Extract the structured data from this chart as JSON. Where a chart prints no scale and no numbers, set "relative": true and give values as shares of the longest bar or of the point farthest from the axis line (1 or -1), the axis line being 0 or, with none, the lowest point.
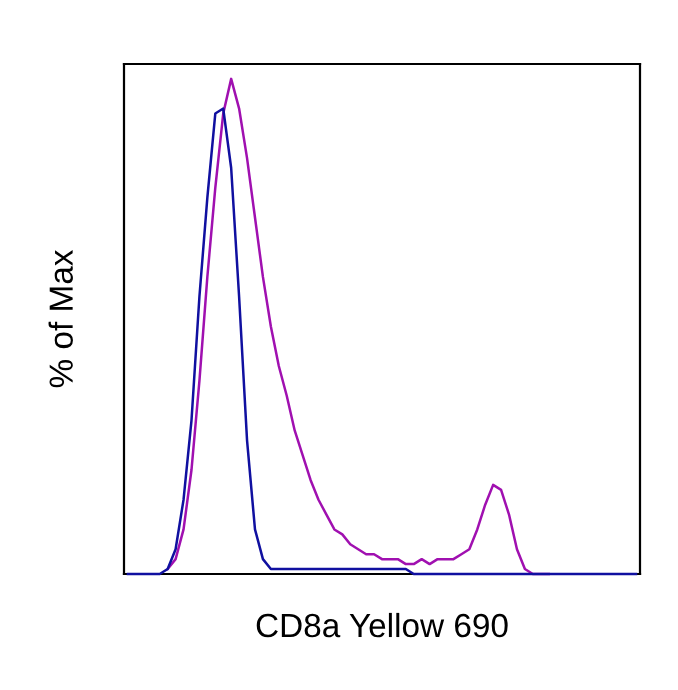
{
  "chart_data": {
    "type": "line",
    "relative": true,
    "xlabel": "CD8a Yellow 690",
    "ylabel": "% of Max",
    "tick_labels": false,
    "grid": false,
    "categories": [
      null,
      null,
      null,
      null,
      null,
      null,
      null,
      null,
      null,
      null,
      null,
      null,
      null,
      null,
      null,
      null,
      null,
      null,
      null,
      null,
      null,
      null,
      null,
      null,
      null,
      null,
      null,
      null,
      null,
      null,
      null,
      null,
      null,
      null,
      null,
      null,
      null,
      null,
      null,
      null,
      null,
      null,
      null,
      null,
      null,
      null,
      null,
      null,
      null,
      null,
      null,
      null,
      null,
      null,
      null,
      null,
      null,
      null,
      null,
      null,
      null,
      null,
      null,
      null,
      null
    ],
    "series": [
      {
        "color": "#a010b0",
        "values": [
          null,
          null,
          null,
          null,
          null,
          0.01,
          0.03,
          0.09,
          0.21,
          0.39,
          0.6,
          0.78,
          0.93,
          1.0,
          0.94,
          0.84,
          0.72,
          0.6,
          0.5,
          0.42,
          0.36,
          0.29,
          0.24,
          0.19,
          0.15,
          0.12,
          0.09,
          0.08,
          0.06,
          0.05,
          0.04,
          0.04,
          0.03,
          0.03,
          0.03,
          0.02,
          0.02,
          0.03,
          0.02,
          0.03,
          0.03,
          0.03,
          0.04,
          0.05,
          0.09,
          0.14,
          0.18,
          0.17,
          0.12,
          0.05,
          0.01,
          0,
          0,
          0,
          null,
          null,
          null,
          null,
          null,
          null,
          null,
          null,
          null,
          null,
          null
        ]
      },
      {
        "color": "#1010a0",
        "values": [
          0,
          0,
          0,
          0,
          0,
          0.01,
          0.05,
          0.15,
          0.31,
          0.56,
          0.76,
          0.93,
          0.94,
          0.82,
          0.56,
          0.27,
          0.09,
          0.03,
          0.01,
          0.01,
          0.01,
          0.01,
          0.01,
          0.01,
          0.01,
          0.01,
          0.01,
          0.01,
          0.01,
          0.01,
          0.01,
          0.01,
          0.01,
          0.01,
          0.01,
          0.01,
          0,
          0,
          0,
          0,
          0,
          0,
          0,
          0,
          0,
          0,
          0,
          0,
          0,
          0,
          0,
          0,
          0,
          0,
          0,
          0,
          0,
          0,
          0,
          0,
          0,
          0,
          0,
          0,
          0
        ]
      }
    ]
  }
}
